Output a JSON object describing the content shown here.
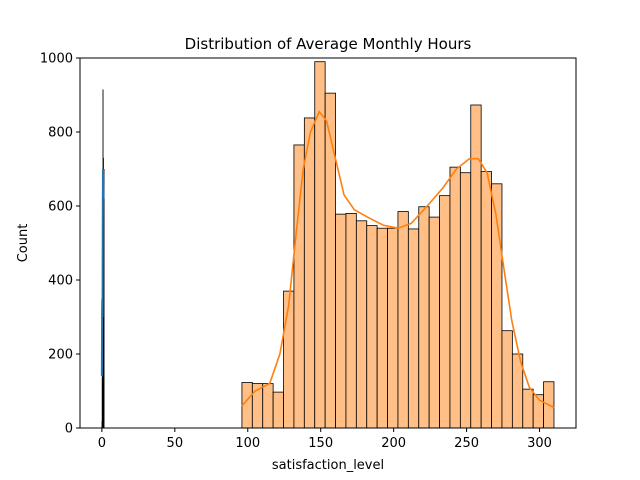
{
  "chart_data": {
    "type": "bar",
    "title": "Distribution of Average Monthly Hours",
    "xlabel": "satisfaction_level",
    "ylabel": "Count",
    "xlim": [
      -15,
      325
    ],
    "ylim": [
      0,
      1000
    ],
    "xticks": [
      0,
      50,
      100,
      150,
      200,
      250,
      300
    ],
    "yticks": [
      0,
      200,
      400,
      600,
      800,
      1000
    ],
    "colors": {
      "hours_fill": "#ffbf86",
      "hours_edge": "#000000",
      "hours_kde": "#ff7f0e",
      "satisfaction_fill": "#000000",
      "satisfaction_kde": "#1f77b4"
    },
    "series": [
      {
        "kind": "histogram",
        "bin_width": 7.13,
        "bin_edges_start": 96,
        "values": [
          123,
          120,
          120,
          97,
          370,
          765,
          838,
          990,
          905,
          578,
          580,
          560,
          547,
          540,
          540,
          585,
          538,
          598,
          570,
          628,
          705,
          690,
          873,
          693,
          660,
          263,
          200,
          105,
          90,
          125
        ],
        "kde": [
          [
            96,
            60
          ],
          [
            105,
            100
          ],
          [
            115,
            120
          ],
          [
            122,
            200
          ],
          [
            128,
            330
          ],
          [
            133,
            520
          ],
          [
            138,
            700
          ],
          [
            143,
            800
          ],
          [
            149,
            855
          ],
          [
            154,
            830
          ],
          [
            160,
            730
          ],
          [
            166,
            630
          ],
          [
            173,
            590
          ],
          [
            182,
            570
          ],
          [
            193,
            548
          ],
          [
            203,
            540
          ],
          [
            212,
            553
          ],
          [
            223,
            600
          ],
          [
            234,
            650
          ],
          [
            243,
            700
          ],
          [
            252,
            728
          ],
          [
            258,
            728
          ],
          [
            264,
            690
          ],
          [
            270,
            580
          ],
          [
            276,
            420
          ],
          [
            281,
            290
          ],
          [
            287,
            180
          ],
          [
            293,
            110
          ],
          [
            300,
            75
          ],
          [
            310,
            55
          ]
        ]
      },
      {
        "kind": "histogram",
        "bins": [
          [
            0.0,
            18
          ],
          [
            0.1,
            136
          ],
          [
            0.2,
            280
          ],
          [
            0.3,
            240
          ],
          [
            0.4,
            520
          ],
          [
            0.5,
            915
          ],
          [
            0.6,
            490
          ],
          [
            0.7,
            730
          ],
          [
            0.8,
            680
          ],
          [
            0.9,
            620
          ],
          [
            1.0,
            700
          ]
        ],
        "kde": [
          [
            0.0,
            140
          ],
          [
            0.15,
            320
          ],
          [
            0.3,
            350
          ],
          [
            0.45,
            300
          ],
          [
            0.6,
            560
          ],
          [
            0.75,
            700
          ],
          [
            0.9,
            650
          ],
          [
            1.0,
            620
          ]
        ]
      }
    ]
  }
}
